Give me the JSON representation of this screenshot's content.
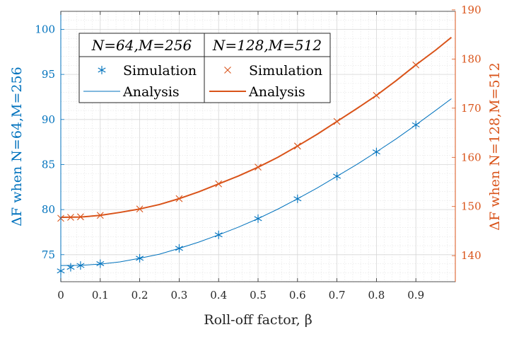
{
  "chart_data": {
    "type": "line",
    "xlabel": "Roll-off factor, β",
    "ylabel_left": "ΔF when N=64,M=256",
    "ylabel_right": "ΔF when N=128,M=512",
    "xlim": [
      0,
      1
    ],
    "ylim_left": [
      72,
      102
    ],
    "ylim_right": [
      134.7,
      189.7
    ],
    "x_ticks": [
      0,
      0.1,
      0.2,
      0.3,
      0.4,
      0.5,
      0.6,
      0.7,
      0.8,
      0.9
    ],
    "x_tick_labels": [
      "0",
      "0.1",
      "0.2",
      "0.3",
      "0.4",
      "0.5",
      "0.6",
      "0.7",
      "0.8",
      "0.9"
    ],
    "y_left_ticks": [
      75,
      80,
      85,
      90,
      95,
      100
    ],
    "y_left_tick_labels": [
      "75",
      "80",
      "85",
      "90",
      "95",
      "100"
    ],
    "y_right_ticks": [
      140,
      150,
      160,
      170,
      180,
      190
    ],
    "y_right_tick_labels": [
      "140",
      "150",
      "160",
      "170",
      "180",
      "190"
    ],
    "grid": true,
    "legend": {
      "location": "top-left",
      "headers": [
        "N=64,M=256",
        "N=128,M=512"
      ],
      "simulation_label": "Simulation",
      "analysis_label": "Analysis"
    },
    "series": [
      {
        "name": "Simulation (N=64,M=256)",
        "axis": "left",
        "marker": "asterisk",
        "color": "#0072BD",
        "x": [
          0,
          0.025,
          0.05,
          0.1,
          0.2,
          0.3,
          0.4,
          0.5,
          0.6,
          0.7,
          0.8,
          0.9
        ],
        "y": [
          73.2,
          73.6,
          73.8,
          74.0,
          74.6,
          75.7,
          77.2,
          79.0,
          81.2,
          83.7,
          86.4,
          89.4
        ]
      },
      {
        "name": "Analysis (N=64,M=256)",
        "axis": "left",
        "style": "line",
        "color": "#0072BD",
        "x": [
          0,
          0.05,
          0.1,
          0.15,
          0.2,
          0.25,
          0.3,
          0.35,
          0.4,
          0.45,
          0.5,
          0.55,
          0.6,
          0.65,
          0.7,
          0.75,
          0.8,
          0.85,
          0.9,
          0.95,
          0.99
        ],
        "y": [
          73.8,
          73.82,
          73.95,
          74.2,
          74.6,
          75.05,
          75.7,
          76.4,
          77.2,
          78.05,
          79.0,
          80.05,
          81.2,
          82.4,
          83.7,
          85.0,
          86.4,
          87.85,
          89.4,
          91.0,
          92.3
        ]
      },
      {
        "name": "Simulation (N=128,M=512)",
        "axis": "right",
        "marker": "x",
        "color": "#D95319",
        "x": [
          0,
          0.025,
          0.05,
          0.1,
          0.2,
          0.3,
          0.4,
          0.5,
          0.6,
          0.7,
          0.8,
          0.9
        ],
        "y": [
          147.6,
          147.8,
          147.9,
          148.2,
          149.5,
          151.6,
          154.6,
          158.0,
          162.3,
          167.3,
          172.6,
          178.8
        ]
      },
      {
        "name": "Analysis (N=128,M=512)",
        "axis": "right",
        "style": "line",
        "color": "#D95319",
        "x": [
          0,
          0.05,
          0.1,
          0.15,
          0.2,
          0.25,
          0.3,
          0.35,
          0.4,
          0.45,
          0.5,
          0.55,
          0.6,
          0.65,
          0.7,
          0.75,
          0.8,
          0.85,
          0.9,
          0.95,
          0.99
        ],
        "y": [
          147.8,
          147.85,
          148.2,
          148.8,
          149.5,
          150.4,
          151.6,
          153.0,
          154.6,
          156.2,
          158.0,
          160.0,
          162.3,
          164.7,
          167.3,
          169.9,
          172.6,
          175.6,
          178.8,
          181.8,
          184.4
        ]
      }
    ]
  }
}
